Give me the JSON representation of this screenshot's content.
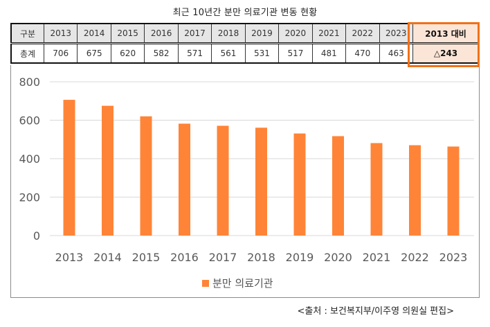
{
  "title": "최근 10년간 분만 의료기관 변동 현황",
  "table": {
    "header": [
      "구분",
      "2013",
      "2014",
      "2015",
      "2016",
      "2017",
      "2018",
      "2019",
      "2020",
      "2021",
      "2022",
      "2023",
      "2013 대비"
    ],
    "row": [
      "총계",
      "706",
      "675",
      "620",
      "582",
      "571",
      "561",
      "531",
      "517",
      "481",
      "470",
      "463",
      "△243"
    ]
  },
  "colors": {
    "bar": "#ff8437",
    "highlight_border": "#f07118",
    "highlight_fill": "#fbe5d6",
    "header_fill": "#e7e6e6",
    "grid": "#d9d9d9"
  },
  "chart_data": {
    "type": "bar",
    "title": "최근 10년간 분만 의료기관 변동 현황",
    "categories": [
      "2013",
      "2014",
      "2015",
      "2016",
      "2017",
      "2018",
      "2019",
      "2020",
      "2021",
      "2022",
      "2023"
    ],
    "series": [
      {
        "name": "분만 의료기관",
        "values": [
          706,
          675,
          620,
          582,
          571,
          561,
          531,
          517,
          481,
          470,
          463
        ]
      }
    ],
    "xlabel": "",
    "ylabel": "",
    "ylim": [
      0,
      800
    ],
    "yticks": [
      "0",
      "200",
      "400",
      "600",
      "800"
    ],
    "grid": true,
    "legend": "bottom"
  },
  "legend": {
    "label": "분만 의료기관"
  },
  "source": "<출처 : 보건복지부/이주영 의원실 편집>"
}
